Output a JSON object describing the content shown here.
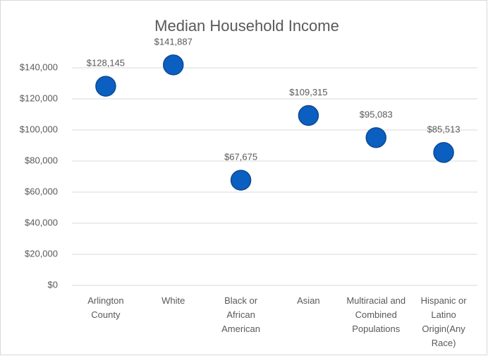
{
  "chart_data": {
    "type": "scatter",
    "title": "Median Household Income",
    "categories": [
      "Arlington County",
      "White",
      "Black or African American",
      "Asian",
      "Multiracial and Combined Populations",
      "Hispanic or Latino Origin(Any Race)"
    ],
    "values": [
      128145,
      141887,
      67675,
      109315,
      95083,
      85513
    ],
    "value_labels": [
      "$128,145",
      "$141,887",
      "$67,675",
      "$109,315",
      "$95,083",
      "$85,513"
    ],
    "color": "#0a5fc0",
    "ylim": [
      0,
      160000
    ],
    "yticks": [
      {
        "value": 0,
        "label": "$0"
      },
      {
        "value": 20000,
        "label": "$20,000"
      },
      {
        "value": 40000,
        "label": "$40,000"
      },
      {
        "value": 60000,
        "label": "$60,000"
      },
      {
        "value": 80000,
        "label": "$80,000"
      },
      {
        "value": 100000,
        "label": "$100,000"
      },
      {
        "value": 120000,
        "label": "$120,000"
      },
      {
        "value": 140000,
        "label": "$140,000"
      }
    ],
    "grid": true
  }
}
